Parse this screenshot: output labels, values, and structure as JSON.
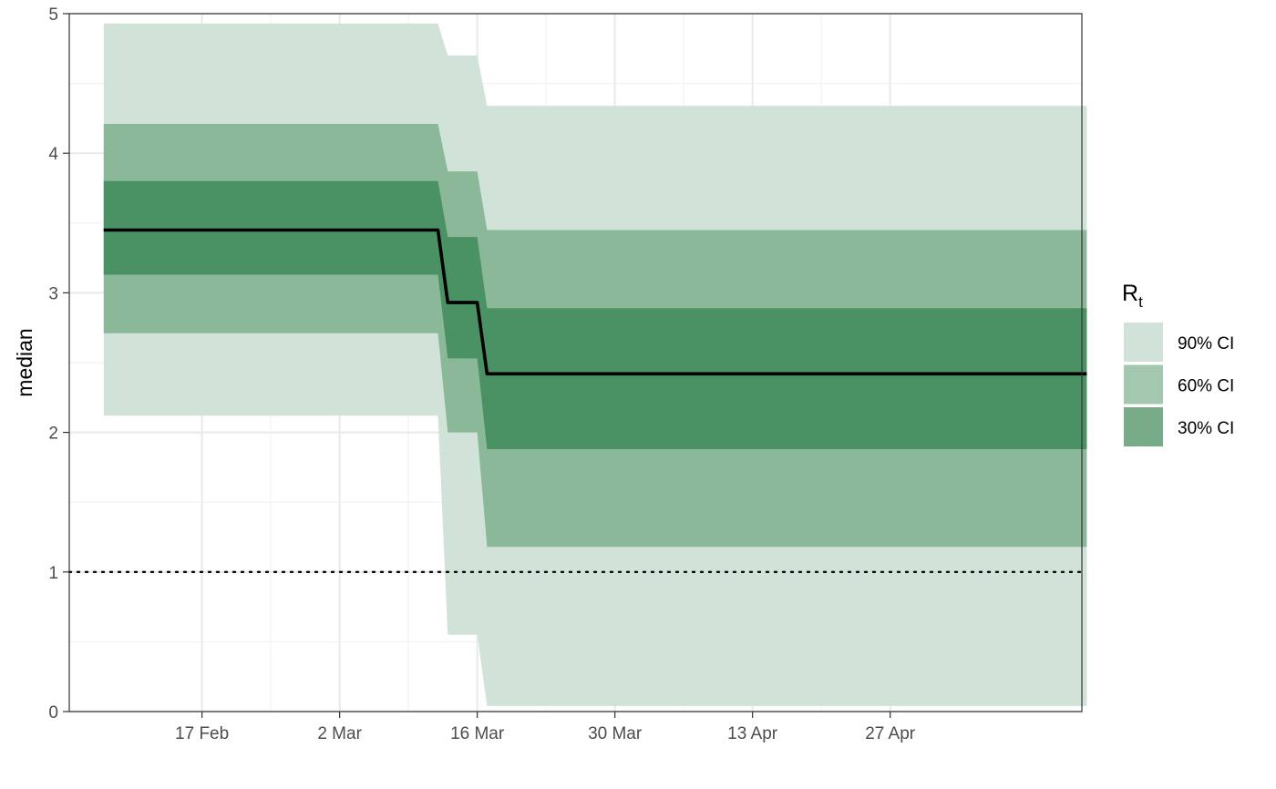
{
  "chart_data": {
    "type": "area",
    "title": "",
    "xlabel": "",
    "ylabel": "median",
    "ylim": [
      0,
      5
    ],
    "yticks": [
      0,
      1,
      2,
      3,
      4,
      5
    ],
    "ytick_labels": [
      "0",
      "1",
      "2",
      "3",
      "4",
      "5"
    ],
    "xlim_day": [
      -13.5,
      89.5
    ],
    "xticks": [
      {
        "day": 0,
        "label": "17 Feb"
      },
      {
        "day": 14,
        "label": "2 Mar"
      },
      {
        "day": 28,
        "label": "16 Mar"
      },
      {
        "day": 42,
        "label": "30 Mar"
      },
      {
        "day": 56,
        "label": "13 Apr"
      },
      {
        "day": 70,
        "label": "27 Apr"
      }
    ],
    "x_day": [
      -10,
      24,
      25,
      28,
      29,
      90
    ],
    "series": [
      {
        "name": "90% CI",
        "lower": [
          2.12,
          2.12,
          0.55,
          0.55,
          0.04,
          0.04
        ],
        "upper": [
          4.93,
          4.93,
          4.7,
          4.7,
          4.34,
          4.34
        ],
        "color": "#d1e3d9"
      },
      {
        "name": "60% CI",
        "lower": [
          2.71,
          2.71,
          2.0,
          2.0,
          1.18,
          1.18
        ],
        "upper": [
          4.21,
          4.21,
          3.87,
          3.87,
          3.45,
          3.45
        ],
        "color": "#8bb898"
      },
      {
        "name": "30% CI",
        "lower": [
          3.13,
          3.13,
          2.53,
          2.53,
          1.88,
          1.88
        ],
        "upper": [
          3.8,
          3.8,
          3.4,
          3.4,
          2.89,
          2.89
        ],
        "color": "#4a9163"
      },
      {
        "name": "median",
        "values": [
          3.45,
          3.45,
          2.93,
          2.93,
          2.42,
          2.42
        ],
        "color": "#000000"
      }
    ],
    "reference_line": {
      "y": 1,
      "style": "dotted"
    },
    "grid": true,
    "legend": {
      "title_main": "R",
      "title_sub": "t",
      "position": "right",
      "entries": [
        {
          "label": "90% CI",
          "color": "#d1e3d9"
        },
        {
          "label": "60% CI",
          "color": "#a3c7af"
        },
        {
          "label": "30% CI",
          "color": "#78ab88"
        }
      ]
    }
  }
}
